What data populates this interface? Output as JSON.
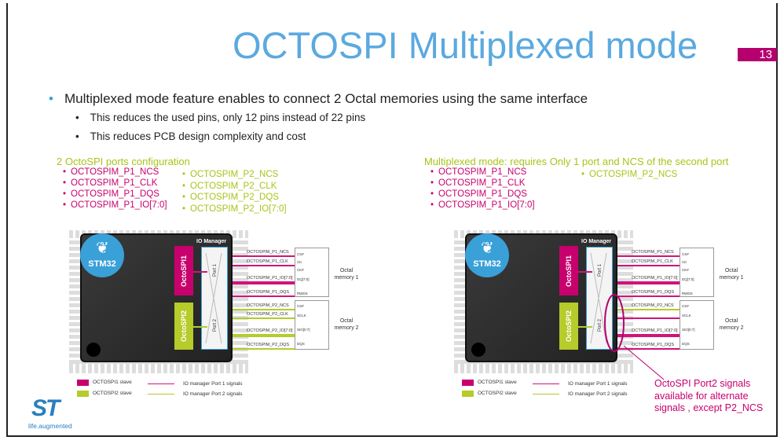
{
  "title": "OCTOSPI Multiplexed mode",
  "page_number": "13",
  "bullets": {
    "main": "Multiplexed mode feature enables to connect 2 Octal memories using the same interface",
    "sub": [
      "This reduces the used pins, only 12 pins instead of 22 pins",
      "This reduces PCB design complexity and cost"
    ]
  },
  "left": {
    "heading": "2 OctoSPI ports configuration",
    "port1": [
      "OCTOSPIM_P1_NCS",
      "OCTOSPIM_P1_CLK",
      "OCTOSPIM_P1_DQS",
      "OCTOSPIM_P1_IO[7:0]"
    ],
    "port2": [
      "OCTOSPIM_P2_NCS",
      "OCTOSPIM_P2_CLK",
      "OCTOSPIM_P2_DQS",
      "OCTOSPIM_P2_IO[7:0]"
    ]
  },
  "right": {
    "heading": "Multiplexed mode: requires Only 1 port  and NCS of the second port",
    "port1": [
      "OCTOSPIM_P1_NCS",
      "OCTOSPIM_P1_CLK",
      "OCTOSPIM_P1_DQS",
      "OCTOSPIM_P1_IO[7:0]"
    ],
    "port2": [
      "OCTOSPIM_P2_NCS"
    ],
    "callout": [
      "OctoSPI Port2 signals",
      "available for alternate",
      "signals , except P2_NCS"
    ]
  },
  "diagrams": [
    {
      "logo": "STM32",
      "ospi1": "OctoSPI1",
      "ospi2": "OctoSPI2",
      "io_manager": "IO Manager",
      "port1": "Port 1",
      "port2": "Port 2",
      "signals": [
        {
          "t": "OCTOSPIM_P1_NCS",
          "c": "#d0147a"
        },
        {
          "t": "OCTOSPIM_P1_CLK",
          "c": "#d0147a"
        },
        {
          "t": "OCTOSPIM_P1_IO[7:0]",
          "c": "#d0147a"
        },
        {
          "t": "OCTOSPIM_P1_DQS",
          "c": "#d0147a"
        },
        {
          "t": "OCTOSPIM_P2_NCS",
          "c": "#b5cc2a"
        },
        {
          "t": "OCTOSPIM_P2_CLK",
          "c": "#b5cc2a"
        },
        {
          "t": "OCTOSPIM_P2_IO[7:0]",
          "c": "#b5cc2a"
        },
        {
          "t": "OCTOSPIM_P2_DQS",
          "c": "#b5cc2a"
        }
      ],
      "mem1_pins": [
        "CS#",
        "CK",
        "CK#",
        "DQ[7:0]",
        "RWDS"
      ],
      "mem2_pins": [
        "CS#",
        "SCLK",
        "SIO[0:7]",
        "DQS"
      ],
      "mem1": "Octal memory 1",
      "mem2": "Octal memory 2",
      "legend": [
        "OCTOSPI1 slave",
        "OCTOSPI2 slave",
        "IO manager Port 1 signals",
        "IO manager Port 2 signals"
      ]
    },
    {
      "logo": "STM32",
      "ospi1": "OctoSPI1",
      "ospi2": "OctoSPI2",
      "io_manager": "IO Manager",
      "port1": "Port 1",
      "port2": "Port 2",
      "signals": [
        {
          "t": "OCTOSPIM_P1_NCS",
          "c": "#d0147a"
        },
        {
          "t": "OCTOSPIM_P1_CLK",
          "c": "#d0147a"
        },
        {
          "t": "OCTOSPIM_P1_IO[7:0]",
          "c": "#d0147a"
        },
        {
          "t": "OCTOSPIM_P1_DQS",
          "c": "#d0147a"
        },
        {
          "t": "OCTOSPIM_P2_NCS",
          "c": "#b5cc2a"
        },
        {
          "t": "",
          "c": "#d0147a"
        },
        {
          "t": "OCTOSPIM_P1_IO[7:0]",
          "c": "#d0147a"
        },
        {
          "t": "OCTOSPIM_P1_DQS",
          "c": "#d0147a"
        }
      ],
      "mem1_pins": [
        "CS#",
        "CK",
        "CK#",
        "DQ[7:0]",
        "RWDS"
      ],
      "mem2_pins": [
        "CS#",
        "SCLK",
        "SIO[0:7]",
        "DQS"
      ],
      "mem1": "Octal memory 1",
      "mem2": "Octal memory 2",
      "legend": [
        "OCTOSPI1 slave",
        "OCTOSPI2 slave",
        "IO manager Port 1 signals",
        "IO manager Port 2 signals"
      ]
    }
  ],
  "logo": {
    "brand": "ST",
    "tagline": "life.augmented"
  },
  "colors": {
    "title": "#5ba9e0",
    "magenta": "#c8006e",
    "green": "#a8c41a",
    "st_blue": "#2a7fc0"
  }
}
